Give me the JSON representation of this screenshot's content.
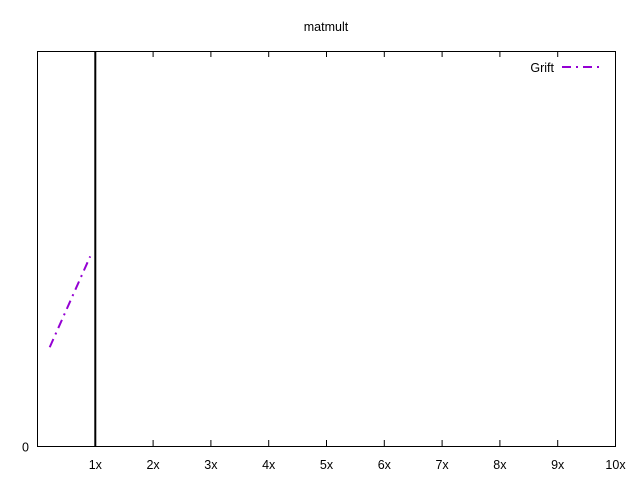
{
  "chart_data": {
    "type": "line",
    "title": "matmult",
    "xlabel": "",
    "ylabel": "",
    "xlim": [
      0,
      10
    ],
    "ylim": [
      0,
      1
    ],
    "x_ticks": [
      {
        "value": 1,
        "label": "1x"
      },
      {
        "value": 2,
        "label": "2x"
      },
      {
        "value": 3,
        "label": "3x"
      },
      {
        "value": 4,
        "label": "4x"
      },
      {
        "value": 5,
        "label": "5x"
      },
      {
        "value": 6,
        "label": "6x"
      },
      {
        "value": 7,
        "label": "7x"
      },
      {
        "value": 8,
        "label": "8x"
      },
      {
        "value": 9,
        "label": "9x"
      },
      {
        "value": 10,
        "label": "10x"
      }
    ],
    "y_ticks": [
      {
        "value": 0,
        "label": "0"
      }
    ],
    "reference_line": {
      "x": 1,
      "color": "#000000"
    },
    "grid": false,
    "legend_position": "top-right",
    "series": [
      {
        "name": "Grift",
        "color": "#9400d3",
        "dash": "dash-dot",
        "points": [
          {
            "x": 0.22,
            "y": 0.25
          },
          {
            "x": 0.92,
            "y": 0.48
          }
        ]
      }
    ]
  }
}
